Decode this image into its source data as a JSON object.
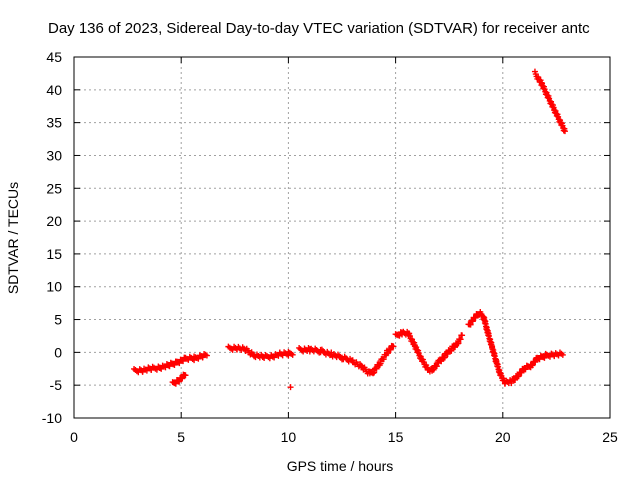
{
  "chart_data": {
    "type": "scatter",
    "title": "Day 136 of 2023, Sidereal Day-to-day VTEC variation (SDTVAR) for receiver antc",
    "xlabel": "GPS time / hours",
    "ylabel": "SDTVAR / TECUs",
    "xlim": [
      0,
      25
    ],
    "ylim": [
      -10,
      45
    ],
    "xticks": [
      0,
      5,
      10,
      15,
      20,
      25
    ],
    "yticks": [
      -10,
      -5,
      0,
      5,
      10,
      15,
      20,
      25,
      30,
      35,
      40,
      45
    ],
    "grid": true,
    "marker_color": "#ff0000",
    "series": [
      {
        "name": "SDTVAR",
        "segments": [
          [
            [
              2.8,
              -2.8
            ],
            [
              3.2,
              -2.7
            ],
            [
              3.6,
              -2.5
            ],
            [
              4.0,
              -2.3
            ],
            [
              4.4,
              -2.0
            ],
            [
              4.8,
              -1.5
            ],
            [
              5.2,
              -1.0
            ],
            [
              5.6,
              -0.9
            ],
            [
              6.0,
              -0.5
            ],
            [
              6.2,
              -0.3
            ]
          ],
          [
            [
              4.6,
              -4.8
            ],
            [
              4.9,
              -4.2
            ],
            [
              5.2,
              -3.4
            ]
          ],
          [
            [
              7.2,
              0.6
            ],
            [
              7.6,
              0.7
            ],
            [
              8.0,
              0.4
            ],
            [
              8.4,
              -0.4
            ],
            [
              8.8,
              -0.7
            ],
            [
              9.2,
              -0.6
            ],
            [
              9.6,
              -0.3
            ],
            [
              10.0,
              -0.2
            ],
            [
              10.2,
              -0.1
            ]
          ],
          [
            [
              10.1,
              -5.3
            ]
          ],
          [
            [
              10.5,
              0.4
            ],
            [
              11.0,
              0.4
            ],
            [
              11.5,
              0.2
            ],
            [
              12.0,
              -0.3
            ],
            [
              12.5,
              -0.8
            ],
            [
              13.0,
              -1.3
            ],
            [
              13.4,
              -2.2
            ],
            [
              13.8,
              -3.2
            ],
            [
              14.0,
              -2.8
            ],
            [
              14.3,
              -1.5
            ],
            [
              14.6,
              0.0
            ],
            [
              14.9,
              1.0
            ]
          ],
          [
            [
              15.0,
              2.5
            ],
            [
              15.3,
              3.0
            ],
            [
              15.6,
              2.8
            ],
            [
              15.9,
              1.0
            ],
            [
              16.2,
              -1.0
            ],
            [
              16.5,
              -2.5
            ],
            [
              16.7,
              -2.8
            ],
            [
              17.0,
              -1.5
            ],
            [
              17.3,
              -0.5
            ],
            [
              17.6,
              0.5
            ],
            [
              17.9,
              1.5
            ],
            [
              18.1,
              2.5
            ]
          ],
          [
            [
              18.4,
              4.0
            ],
            [
              18.6,
              5.0
            ],
            [
              18.9,
              6.0
            ],
            [
              19.1,
              5.5
            ],
            [
              19.3,
              3.0
            ],
            [
              19.5,
              0.8
            ],
            [
              19.7,
              -1.5
            ],
            [
              19.9,
              -3.5
            ],
            [
              20.1,
              -4.5
            ],
            [
              20.4,
              -4.5
            ],
            [
              20.7,
              -3.5
            ],
            [
              21.0,
              -2.5
            ],
            [
              21.3,
              -2.0
            ],
            [
              21.6,
              -1.0
            ],
            [
              22.0,
              -0.5
            ],
            [
              22.4,
              -0.3
            ],
            [
              22.8,
              -0.3
            ]
          ],
          [
            [
              21.5,
              42.5
            ],
            [
              21.8,
              41.0
            ],
            [
              22.1,
              39.0
            ],
            [
              22.4,
              37.0
            ],
            [
              22.7,
              35.0
            ],
            [
              22.9,
              33.7
            ]
          ]
        ]
      }
    ]
  }
}
